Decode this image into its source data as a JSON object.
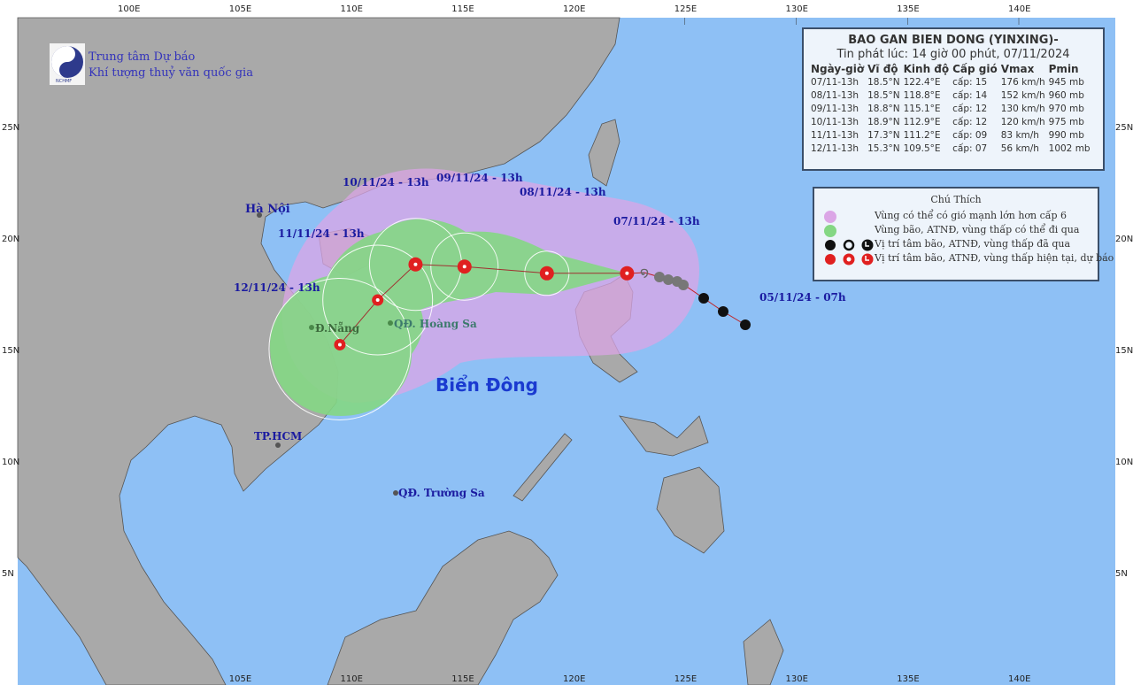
{
  "logo": {
    "org_line1": "Trung tâm Dự báo",
    "org_line2": "Khí tượng thuỷ văn quốc gia",
    "badge": "NCHMF"
  },
  "axes": {
    "lon_top": [
      "100E",
      "105E",
      "110E",
      "115E",
      "120E",
      "125E",
      "130E",
      "135E",
      "140E"
    ],
    "lon_bottom": [
      "105E",
      "110E",
      "115E",
      "120E",
      "125E",
      "130E",
      "135E",
      "140E"
    ],
    "lat": [
      "25N",
      "20N",
      "15N",
      "10N",
      "5N"
    ]
  },
  "bulletin": {
    "title": "BAO GAN BIEN DONG (YINXING)-",
    "issued": "Tin phát lúc: 14 giờ 00 phút, 07/11/2024",
    "headers": [
      "Ngày-giờ",
      "Vĩ độ",
      "Kinh độ",
      "Cấp gió",
      "Vmax",
      "Pmin"
    ],
    "rows": [
      [
        "07/11-13h",
        "18.5°N",
        "122.4°E",
        "cấp: 15",
        "176 km/h",
        "945 mb"
      ],
      [
        "08/11-13h",
        "18.5°N",
        "118.8°E",
        "cấp: 14",
        "152 km/h",
        "960 mb"
      ],
      [
        "09/11-13h",
        "18.8°N",
        "115.1°E",
        "cấp: 12",
        "130 km/h",
        "970 mb"
      ],
      [
        "10/11-13h",
        "18.9°N",
        "112.9°E",
        "cấp: 12",
        "120 km/h",
        "975 mb"
      ],
      [
        "11/11-13h",
        "17.3°N",
        "111.2°E",
        "cấp: 09",
        "83 km/h",
        "990 mb"
      ],
      [
        "12/11-13h",
        "15.3°N",
        "109.5°E",
        "cấp: 07",
        "56 km/h",
        "1002 mb"
      ]
    ]
  },
  "legend": {
    "title": "Chú Thích",
    "items": [
      {
        "label": "Vùng có thể có gió mạnh lớn hơn cấp 6",
        "color": "#dba6e6"
      },
      {
        "label": "Vùng bão, ATNĐ, vùng thấp có thể đi qua",
        "color": "#84d784"
      },
      {
        "label": "Vị trí tâm bão, ATNĐ, vùng thấp đã qua",
        "color": "#111111"
      },
      {
        "label": "Vị trí tâm bão, ATNĐ, vùng thấp hiện tại, dự báo",
        "color": "#e02020"
      }
    ]
  },
  "track_labels": {
    "d07": "07/11/24 - 13h",
    "d08": "08/11/24 - 13h",
    "d09": "09/11/24 - 13h",
    "d10": "10/11/24 - 13h",
    "d11": "11/11/24 - 13h",
    "d12": "12/11/24 - 13h",
    "past": "05/11/24 - 07h"
  },
  "places": {
    "hanoi": "Hà Nội",
    "danang": "Đ.Nẵng",
    "hoangsa": "QĐ. Hoàng Sa",
    "truongsa": "QĐ. Trường Sa",
    "hcm": "TP.HCM",
    "sea": "Biển Đông"
  },
  "colors": {
    "sea": "#8ec0f5",
    "land": "#a9a9a9",
    "wind_zone": "#dba6e6",
    "track_cone": "#84d784",
    "forecast": "#e02020",
    "past": "#111111"
  }
}
